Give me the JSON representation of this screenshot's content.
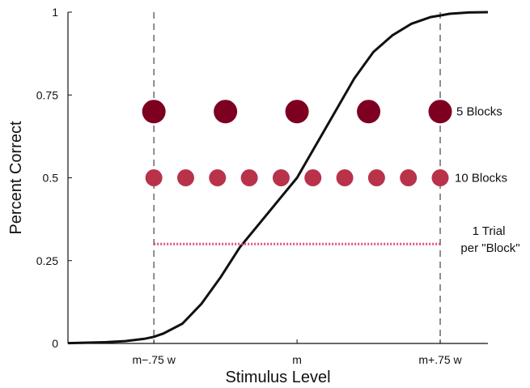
{
  "chart_data": {
    "type": "scatter",
    "xlabel": "Stimulus Level",
    "ylabel": "Percent Correct",
    "xlim": [
      -1.2,
      1.0
    ],
    "ylim": [
      0,
      1
    ],
    "xticks": [
      {
        "value": -0.75,
        "label": "m−.75 w"
      },
      {
        "value": 0,
        "label": "m"
      },
      {
        "value": 0.75,
        "label": "m+.75 w"
      }
    ],
    "yticks": [
      {
        "value": 0,
        "label": "0"
      },
      {
        "value": 0.25,
        "label": "0.25"
      },
      {
        "value": 0.5,
        "label": "0.5"
      },
      {
        "value": 0.75,
        "label": "0.75"
      },
      {
        "value": 1,
        "label": "1"
      }
    ],
    "grid": false,
    "reference_lines_x": [
      -0.75,
      0.75
    ],
    "curve": {
      "type": "psychometric",
      "center": 0,
      "x": [
        -1.2,
        -1.0,
        -0.9,
        -0.8,
        -0.75,
        -0.7,
        -0.6,
        -0.5,
        -0.4,
        -0.3,
        -0.2,
        -0.1,
        0,
        0.1,
        0.2,
        0.3,
        0.4,
        0.5,
        0.6,
        0.7,
        0.75,
        0.8,
        0.9,
        1.0
      ],
      "y": [
        0.001,
        0.004,
        0.007,
        0.014,
        0.02,
        0.03,
        0.06,
        0.12,
        0.2,
        0.29,
        0.36,
        0.43,
        0.5,
        0.6,
        0.7,
        0.8,
        0.88,
        0.93,
        0.965,
        0.985,
        0.99,
        0.995,
        0.999,
        1.0
      ]
    },
    "series": [
      {
        "label": "5 Blocks",
        "y": 0.7,
        "x": [
          -0.75,
          -0.375,
          0,
          0.375,
          0.75
        ],
        "color": "#7d0021",
        "size": "large"
      },
      {
        "label": "10 Blocks",
        "y": 0.5,
        "x": [
          -0.75,
          -0.5833,
          -0.4167,
          -0.25,
          -0.0833,
          0.0833,
          0.25,
          0.4167,
          0.5833,
          0.75
        ],
        "color": "#b8334a",
        "size": "small"
      },
      {
        "label_lines": [
          "1 Trial",
          "per \"Block\""
        ],
        "y": 0.3,
        "x_range": [
          -0.75,
          0.75
        ],
        "color": "#e0507a",
        "style": "dotted-line"
      }
    ]
  }
}
